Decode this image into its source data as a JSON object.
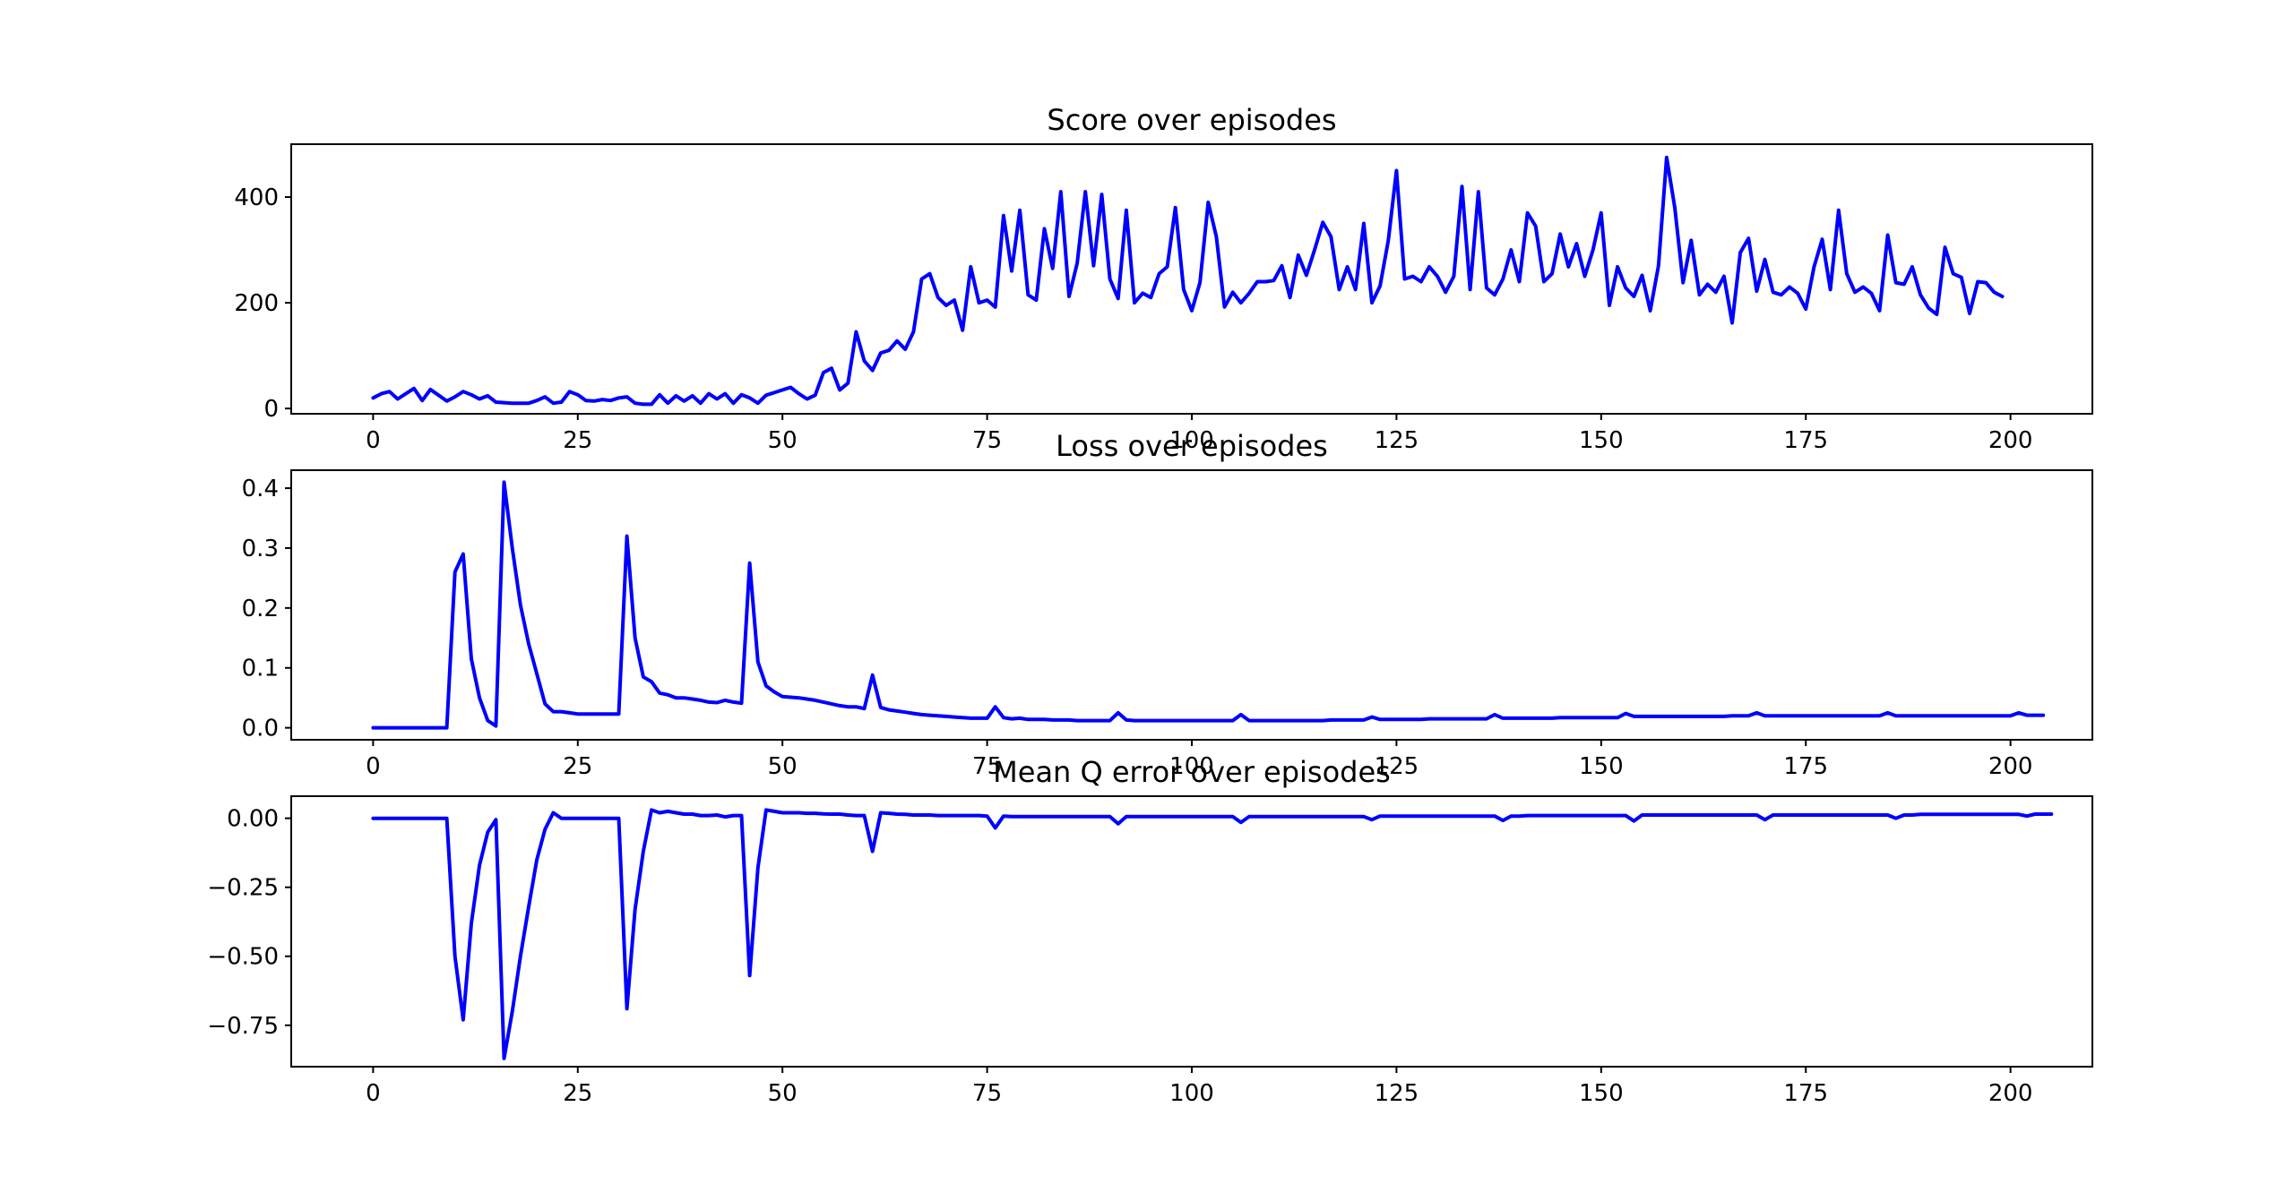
{
  "colors": {
    "series": "#0000ff",
    "background": "#ffffff",
    "axes": "#000000"
  },
  "chart_data": [
    {
      "type": "line",
      "title": "Score over episodes",
      "xlabel": "",
      "ylabel": "",
      "xlim": [
        -10,
        210
      ],
      "ylim": [
        -10,
        500
      ],
      "xticks": [
        0,
        25,
        50,
        75,
        100,
        125,
        150,
        175,
        200
      ],
      "xtick_labels": [
        "0",
        "25",
        "50",
        "75",
        "100",
        "125",
        "150",
        "175",
        "200"
      ],
      "yticks": [
        0,
        200,
        400
      ],
      "ytick_labels": [
        "0",
        "200",
        "400"
      ],
      "grid": false,
      "series": [
        {
          "x_start": 0,
          "x_step": 1,
          "y": [
            20,
            28,
            32,
            18,
            28,
            38,
            15,
            36,
            25,
            14,
            22,
            32,
            26,
            18,
            24,
            12,
            11,
            10,
            10,
            10,
            15,
            22,
            10,
            12,
            32,
            26,
            15,
            14,
            17,
            15,
            20,
            22,
            10,
            8,
            8,
            26,
            10,
            24,
            14,
            24,
            10,
            28,
            18,
            28,
            10,
            26,
            20,
            10,
            25,
            30,
            35,
            40,
            28,
            18,
            25,
            68,
            76,
            35,
            48,
            145,
            90,
            72,
            105,
            110,
            128,
            112,
            145,
            245,
            255,
            210,
            195,
            205,
            148,
            268,
            200,
            205,
            192,
            365,
            260,
            375,
            215,
            205,
            340,
            265,
            410,
            212,
            275,
            410,
            270,
            405,
            245,
            208,
            375,
            200,
            218,
            210,
            255,
            268,
            380,
            225,
            185,
            238,
            390,
            325,
            192,
            220,
            200,
            218,
            240,
            240,
            242,
            270,
            210,
            290,
            252,
            300,
            352,
            325,
            225,
            268,
            225,
            350,
            200,
            232,
            318,
            450,
            245,
            250,
            240,
            268,
            250,
            220,
            250,
            420,
            225,
            410,
            228,
            215,
            245,
            300,
            240,
            370,
            345,
            240,
            255,
            330,
            268,
            312,
            250,
            300,
            370,
            195,
            268,
            228,
            212,
            252,
            185,
            270,
            475,
            380,
            238,
            318,
            215,
            235,
            220,
            250,
            162,
            295,
            322,
            222,
            282,
            220,
            215,
            230,
            218,
            188,
            268,
            320,
            225,
            375,
            255,
            220,
            230,
            218,
            185,
            328,
            238,
            235,
            268,
            215,
            190,
            178,
            305,
            255,
            248,
            180,
            240,
            238,
            220,
            212
          ]
        }
      ]
    },
    {
      "type": "line",
      "title": "Loss over episodes",
      "xlabel": "",
      "ylabel": "",
      "xlim": [
        -10,
        210
      ],
      "ylim": [
        -0.02,
        0.43
      ],
      "xticks": [
        0,
        25,
        50,
        75,
        100,
        125,
        150,
        175,
        200
      ],
      "xtick_labels": [
        "0",
        "25",
        "50",
        "75",
        "100",
        "125",
        "150",
        "175",
        "200"
      ],
      "yticks": [
        0.0,
        0.1,
        0.2,
        0.3,
        0.4
      ],
      "ytick_labels": [
        "0.0",
        "0.1",
        "0.2",
        "0.3",
        "0.4"
      ],
      "grid": false,
      "series": [
        {
          "x_start": 0,
          "x_step": 1,
          "y": [
            0,
            0,
            0,
            0,
            0,
            0,
            0,
            0,
            0,
            0,
            0.26,
            0.29,
            0.115,
            0.05,
            0.012,
            0.003,
            0.41,
            0.3,
            0.205,
            0.14,
            0.09,
            0.04,
            0.027,
            0.027,
            0.025,
            0.023,
            0.023,
            0.023,
            0.023,
            0.023,
            0.023,
            0.32,
            0.15,
            0.085,
            0.077,
            0.058,
            0.055,
            0.05,
            0.05,
            0.048,
            0.046,
            0.043,
            0.042,
            0.046,
            0.043,
            0.041,
            0.275,
            0.11,
            0.07,
            0.06,
            0.052,
            0.051,
            0.05,
            0.048,
            0.046,
            0.043,
            0.04,
            0.037,
            0.035,
            0.035,
            0.032,
            0.088,
            0.034,
            0.03,
            0.028,
            0.026,
            0.024,
            0.022,
            0.021,
            0.02,
            0.019,
            0.018,
            0.017,
            0.016,
            0.016,
            0.016,
            0.035,
            0.017,
            0.015,
            0.016,
            0.014,
            0.014,
            0.014,
            0.013,
            0.013,
            0.013,
            0.012,
            0.012,
            0.012,
            0.012,
            0.012,
            0.025,
            0.013,
            0.012,
            0.012,
            0.012,
            0.012,
            0.012,
            0.012,
            0.012,
            0.012,
            0.012,
            0.012,
            0.012,
            0.012,
            0.012,
            0.022,
            0.012,
            0.012,
            0.012,
            0.012,
            0.012,
            0.012,
            0.012,
            0.012,
            0.012,
            0.012,
            0.013,
            0.013,
            0.013,
            0.013,
            0.013,
            0.018,
            0.014,
            0.014,
            0.014,
            0.014,
            0.014,
            0.014,
            0.015,
            0.015,
            0.015,
            0.015,
            0.015,
            0.015,
            0.015,
            0.015,
            0.022,
            0.016,
            0.016,
            0.016,
            0.016,
            0.016,
            0.016,
            0.016,
            0.017,
            0.017,
            0.017,
            0.017,
            0.017,
            0.017,
            0.017,
            0.017,
            0.024,
            0.019,
            0.019,
            0.019,
            0.019,
            0.019,
            0.019,
            0.019,
            0.019,
            0.019,
            0.019,
            0.019,
            0.019,
            0.02,
            0.02,
            0.02,
            0.025,
            0.02,
            0.02,
            0.02,
            0.02,
            0.02,
            0.02,
            0.02,
            0.02,
            0.02,
            0.02,
            0.02,
            0.02,
            0.02,
            0.02,
            0.02,
            0.025,
            0.02,
            0.02,
            0.02,
            0.02,
            0.02,
            0.02,
            0.02,
            0.02,
            0.02,
            0.02,
            0.02,
            0.02,
            0.02,
            0.02,
            0.02,
            0.025,
            0.021,
            0.021,
            0.021
          ]
        }
      ]
    },
    {
      "type": "line",
      "title": "Mean Q error over episodes",
      "xlabel": "",
      "ylabel": "",
      "xlim": [
        -10,
        210
      ],
      "ylim": [
        -0.9,
        0.08
      ],
      "xticks": [
        0,
        25,
        50,
        75,
        100,
        125,
        150,
        175,
        200
      ],
      "xtick_labels": [
        "0",
        "25",
        "50",
        "75",
        "100",
        "125",
        "150",
        "175",
        "200"
      ],
      "yticks": [
        0.0,
        -0.25,
        -0.5,
        -0.75
      ],
      "ytick_labels": [
        "0.00",
        "−0.25",
        "−0.50",
        "−0.75"
      ],
      "grid": false,
      "series": [
        {
          "x_start": 0,
          "x_step": 1,
          "y": [
            0,
            0,
            0,
            0,
            0,
            0,
            0,
            0,
            0,
            0,
            -0.5,
            -0.73,
            -0.38,
            -0.17,
            -0.05,
            -0.005,
            -0.87,
            -0.7,
            -0.5,
            -0.32,
            -0.15,
            -0.04,
            0.02,
            0.0,
            0.0,
            0.0,
            0.0,
            0.0,
            0.0,
            0.0,
            0.0,
            -0.69,
            -0.33,
            -0.12,
            0.03,
            0.02,
            0.025,
            0.02,
            0.015,
            0.015,
            0.01,
            0.01,
            0.012,
            0.005,
            0.01,
            0.01,
            -0.57,
            -0.18,
            0.03,
            0.025,
            0.02,
            0.02,
            0.02,
            0.018,
            0.018,
            0.016,
            0.015,
            0.015,
            0.012,
            0.01,
            0.01,
            -0.12,
            0.02,
            0.018,
            0.015,
            0.014,
            0.012,
            0.012,
            0.012,
            0.01,
            0.01,
            0.01,
            0.01,
            0.01,
            0.01,
            0.008,
            -0.035,
            0.008,
            0.006,
            0.006,
            0.006,
            0.006,
            0.006,
            0.006,
            0.006,
            0.006,
            0.006,
            0.006,
            0.006,
            0.006,
            0.006,
            -0.02,
            0.006,
            0.006,
            0.006,
            0.006,
            0.006,
            0.006,
            0.006,
            0.006,
            0.006,
            0.006,
            0.006,
            0.006,
            0.006,
            0.006,
            -0.015,
            0.006,
            0.006,
            0.006,
            0.006,
            0.006,
            0.006,
            0.006,
            0.006,
            0.006,
            0.006,
            0.006,
            0.006,
            0.006,
            0.006,
            0.006,
            -0.005,
            0.008,
            0.008,
            0.008,
            0.008,
            0.008,
            0.008,
            0.008,
            0.008,
            0.008,
            0.008,
            0.008,
            0.008,
            0.008,
            0.008,
            0.008,
            -0.008,
            0.008,
            0.008,
            0.01,
            0.01,
            0.01,
            0.01,
            0.01,
            0.01,
            0.01,
            0.01,
            0.01,
            0.01,
            0.01,
            0.01,
            0.01,
            -0.01,
            0.012,
            0.012,
            0.012,
            0.012,
            0.012,
            0.012,
            0.012,
            0.012,
            0.012,
            0.012,
            0.012,
            0.012,
            0.012,
            0.012,
            0.012,
            -0.005,
            0.012,
            0.012,
            0.012,
            0.012,
            0.012,
            0.012,
            0.012,
            0.012,
            0.012,
            0.012,
            0.012,
            0.012,
            0.012,
            0.012,
            0.012,
            0.0,
            0.012,
            0.012,
            0.014,
            0.014,
            0.014,
            0.014,
            0.014,
            0.014,
            0.014,
            0.014,
            0.014,
            0.014,
            0.014,
            0.014,
            0.014,
            0.008,
            0.015,
            0.015,
            0.015
          ]
        }
      ]
    }
  ]
}
